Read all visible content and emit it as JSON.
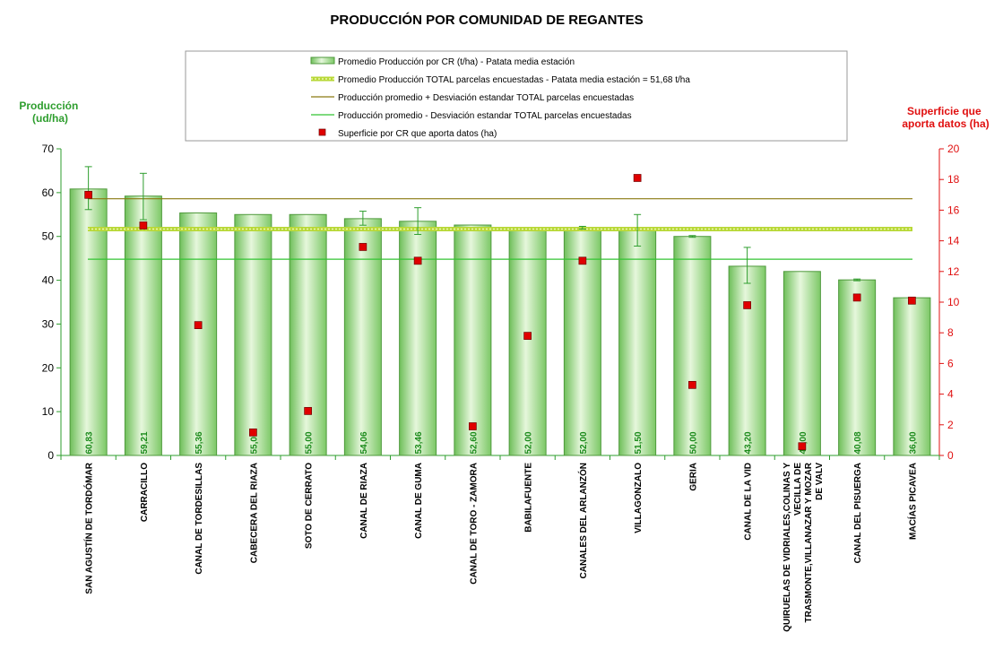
{
  "chart_data": {
    "type": "bar",
    "title": "PRODUCCIÓN POR COMUNIDAD DE REGANTES",
    "ylabel_left": [
      "Producción",
      "(ud/ha)"
    ],
    "ylabel_right": [
      "Superficie que",
      "aporta datos (ha)"
    ],
    "ylim_left": [
      0,
      70
    ],
    "yticks_left": [
      "0",
      "10",
      "20",
      "30",
      "40",
      "50",
      "60",
      "70"
    ],
    "ylim_right": [
      0,
      20
    ],
    "yticks_right": [
      "0",
      "2",
      "4",
      "6",
      "8",
      "10",
      "12",
      "14",
      "16",
      "18",
      "20"
    ],
    "categories": [
      [
        "SAN AGUSTÍN DE TORDÓMAR"
      ],
      [
        "CARRACILLO"
      ],
      [
        "CANAL DE TORDESILLAS"
      ],
      [
        "CABECERA DEL RIAZA"
      ],
      [
        "SOTO DE CERRATO"
      ],
      [
        "CANAL DE RIAZA"
      ],
      [
        "CANAL DE GUMA"
      ],
      [
        "CANAL DE TORO - ZAMORA"
      ],
      [
        "BABILAFUENTE"
      ],
      [
        "CANALES DEL ARLANZÓN"
      ],
      [
        "VILLAGONZALO"
      ],
      [
        "GERIA"
      ],
      [
        "CANAL DE LA VID"
      ],
      [
        "QUIRUELAS DE VIDRIALES,COLINAS Y",
        "VECILLA DE",
        "TRASMONTE,VILLANAZAR Y MOZAR",
        "DE VALV"
      ],
      [
        "CANAL DEL PISUERGA"
      ],
      [
        "MACÍAS PICAVEA"
      ]
    ],
    "bar_labels": [
      "60,83",
      "59,21",
      "55,36",
      "55,00",
      "55,00",
      "54,06",
      "53,46",
      "52,60",
      "52,00",
      "52,00",
      "51,50",
      "50,00",
      "43,20",
      "42,00",
      "40,08",
      "36,00"
    ],
    "series": [
      {
        "name": "Promedio Producción por CR (t/ha) - Patata media estación",
        "type": "bar",
        "axis": "left",
        "values": [
          60.83,
          59.21,
          55.36,
          55.0,
          55.0,
          54.06,
          53.46,
          52.6,
          52.0,
          52.0,
          51.5,
          50.0,
          43.2,
          42.0,
          40.08,
          36.0
        ],
        "error_plus": [
          5.1,
          5.2,
          0,
          0,
          0,
          1.7,
          3.1,
          0,
          0,
          0.3,
          3.5,
          0.2,
          4.3,
          0,
          0.2,
          0
        ],
        "error_minus": [
          4.7,
          5.4,
          0,
          0,
          0,
          1.5,
          3.0,
          0,
          0,
          0.3,
          3.7,
          0.2,
          3.9,
          0,
          0.2,
          0
        ],
        "color": "#8fd27a"
      },
      {
        "name": "Promedio Producción TOTAL parcelas encuestadas - Patata media estación = 51,68 t/ha",
        "type": "line",
        "axis": "left",
        "value": 51.68,
        "color": "#b8d838"
      },
      {
        "name": "Producción promedio + Desviación estandar TOTAL parcelas encuestadas",
        "type": "line",
        "axis": "left",
        "value": 58.6,
        "color": "#8a7a10"
      },
      {
        "name": "Producción promedio - Desviación estandar TOTAL parcelas encuestadas",
        "type": "line",
        "axis": "left",
        "value": 44.8,
        "color": "#33c433"
      },
      {
        "name": "Superficie por CR que aporta datos (ha)",
        "type": "scatter",
        "axis": "right",
        "values": [
          17.0,
          15.0,
          8.5,
          1.5,
          2.9,
          13.6,
          12.7,
          1.9,
          7.8,
          12.7,
          18.1,
          4.6,
          9.8,
          0.6,
          10.3,
          10.1
        ],
        "color": "#e00000"
      }
    ],
    "grid": false,
    "legend_position": "top-center"
  }
}
